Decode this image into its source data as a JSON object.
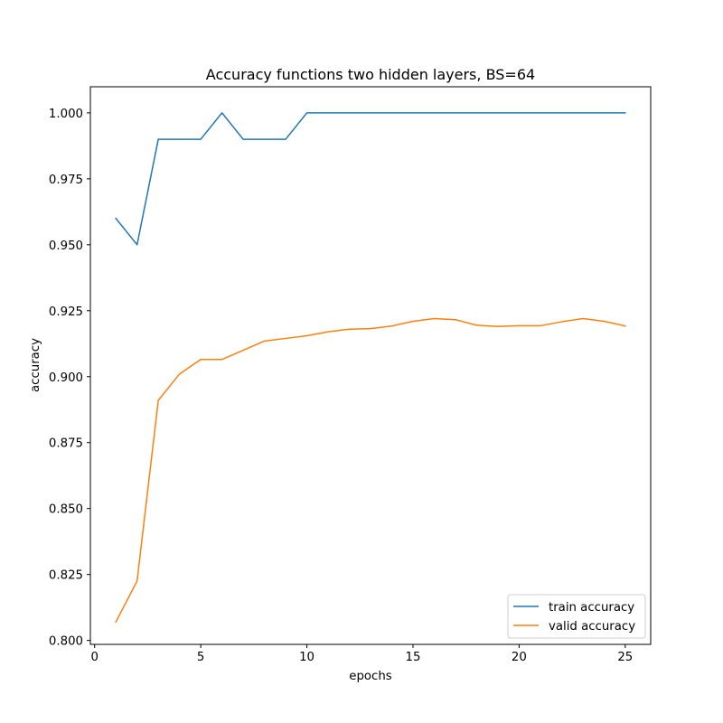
{
  "chart_data": {
    "type": "line",
    "title": "Accuracy functions two hidden layers, BS=64",
    "xlabel": "epochs",
    "ylabel": "accuracy",
    "xlim": [
      -0.2,
      26.2
    ],
    "ylim": [
      0.7985,
      1.0099
    ],
    "xticks": [
      0,
      5,
      10,
      15,
      20,
      25
    ],
    "xtick_labels": [
      "0",
      "5",
      "10",
      "15",
      "20",
      "25"
    ],
    "yticks": [
      0.8,
      0.825,
      0.85,
      0.875,
      0.9,
      0.925,
      0.95,
      0.975,
      1.0
    ],
    "ytick_labels": [
      "0.800",
      "0.825",
      "0.850",
      "0.875",
      "0.900",
      "0.925",
      "0.950",
      "0.975",
      "1.000"
    ],
    "grid": false,
    "legend_position": "bottom-right",
    "x": [
      1,
      2,
      3,
      4,
      5,
      6,
      7,
      8,
      9,
      10,
      11,
      12,
      13,
      14,
      15,
      16,
      17,
      18,
      19,
      20,
      21,
      22,
      23,
      24,
      25
    ],
    "series": [
      {
        "name": "train accuracy",
        "color": "#1f77b4",
        "values": [
          0.96,
          0.95,
          0.99,
          0.99,
          0.99,
          1.0,
          0.99,
          0.99,
          0.99,
          1.0,
          1.0,
          1.0,
          1.0,
          1.0,
          1.0,
          1.0,
          1.0,
          1.0,
          1.0,
          1.0,
          1.0,
          1.0,
          1.0,
          1.0,
          1.0
        ]
      },
      {
        "name": "valid accuracy",
        "color": "#ff7f0e",
        "values": [
          0.807,
          0.8225,
          0.891,
          0.901,
          0.9065,
          0.9065,
          0.91,
          0.9135,
          0.9145,
          0.9155,
          0.917,
          0.918,
          0.9182,
          0.9192,
          0.921,
          0.922,
          0.9216,
          0.9195,
          0.919,
          0.9193,
          0.9193,
          0.9208,
          0.922,
          0.921,
          0.9192
        ]
      }
    ]
  }
}
